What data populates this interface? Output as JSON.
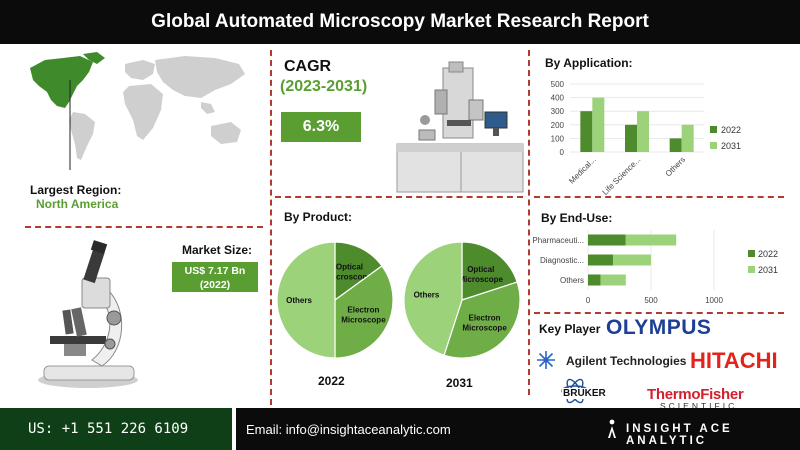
{
  "header": {
    "title": "Global Automated Microscopy Market Research Report"
  },
  "region": {
    "label": "Largest Region:",
    "value": "North America"
  },
  "market_size": {
    "label": "Market Size:",
    "value_line1": "US$ 7.17 Bn",
    "value_line2": "(2022)"
  },
  "cagr": {
    "title": "CAGR",
    "years": "(2023-2031)",
    "value": "6.3%"
  },
  "sections": {
    "by_product": "By Product:",
    "by_application": "By Application:",
    "by_end_use": "By End-Use:"
  },
  "key_players": {
    "label": "Key Player",
    "logos": [
      "OLYMPUS",
      "Agilent Technologies",
      "HITACHI",
      "BRUKER",
      "ThermoFisher",
      "SCIENTIFIC"
    ]
  },
  "footer": {
    "phone": "US: +1 551 226 6109",
    "email": "Email: info@insightaceanalytic.com",
    "brand": "INSIGHT ACE ANALYTIC"
  },
  "colors": {
    "dark_green": "#4e8b2c",
    "mid_green": "#6fad47",
    "light_green": "#9bd27a",
    "accent_red": "#b33a2e"
  },
  "chart_data": [
    {
      "type": "pie",
      "title": "2022",
      "slices": [
        {
          "label": "Optical Microscope",
          "value": 15
        },
        {
          "label": "Electron Microscope",
          "value": 35
        },
        {
          "label": "Others",
          "value": 50
        }
      ]
    },
    {
      "type": "pie",
      "title": "2031",
      "slices": [
        {
          "label": "Optical Microscope",
          "value": 20
        },
        {
          "label": "Electron Microscope",
          "value": 35
        },
        {
          "label": "Others",
          "value": 45
        }
      ]
    },
    {
      "type": "bar",
      "title": "By Application:",
      "categories": [
        "Medical...",
        "Life Science...",
        "Others"
      ],
      "series": [
        {
          "name": "2022",
          "values": [
            300,
            200,
            100
          ]
        },
        {
          "name": "2031",
          "values": [
            400,
            300,
            200
          ]
        }
      ],
      "ylim": [
        0,
        500
      ],
      "yticks": [
        0,
        100,
        200,
        300,
        400,
        500
      ],
      "legend": "right"
    },
    {
      "type": "bar",
      "orientation": "horizontal-stacked",
      "title": "By End-Use:",
      "categories": [
        "Pharmaceuti...",
        "Diagnostic...",
        "Others"
      ],
      "series": [
        {
          "name": "2022",
          "values": [
            300,
            200,
            100
          ]
        },
        {
          "name": "2031",
          "values": [
            400,
            300,
            200
          ]
        }
      ],
      "xlim": [
        0,
        1000
      ],
      "xticks": [
        0,
        500,
        1000
      ],
      "legend": "right"
    }
  ]
}
